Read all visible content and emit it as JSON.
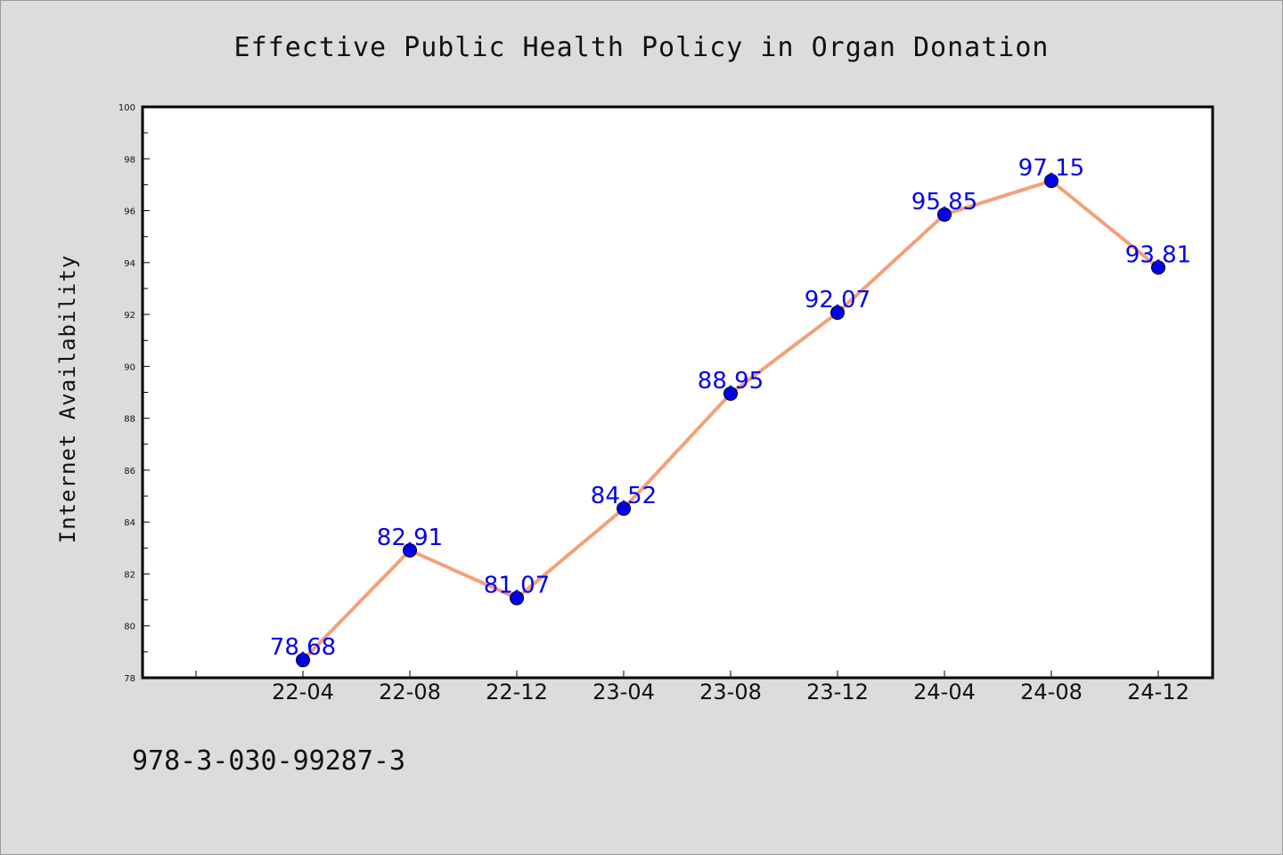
{
  "chart_data": {
    "type": "line",
    "title": "Effective Public Health Policy in Organ Donation",
    "xlabel": "",
    "ylabel": "Internet Availability",
    "categories": [
      "22-04",
      "22-08",
      "22-12",
      "23-04",
      "23-08",
      "23-12",
      "24-04",
      "24-08",
      "24-12"
    ],
    "series": [
      {
        "values": [
          78.68,
          82.91,
          81.07,
          84.52,
          88.95,
          92.07,
          95.85,
          97.15,
          93.81
        ],
        "data_labels": [
          "78.68",
          "82.91",
          "81.07",
          "84.52",
          "88.95",
          "92.07",
          "95.85",
          "97.15",
          "93.81"
        ],
        "line_color": "#f4a07a",
        "marker_color": "#0000ee"
      }
    ],
    "ylim": [
      78,
      100
    ],
    "yticks": [
      78,
      80,
      82,
      84,
      86,
      88,
      90,
      92,
      94,
      96,
      98,
      100
    ],
    "grid": false,
    "label_color": "#0000ee"
  },
  "footer": {
    "isbn": "978-3-030-99287-3"
  },
  "colors": {
    "background": "#dcdcdc",
    "plot_background": "#ffffff"
  }
}
